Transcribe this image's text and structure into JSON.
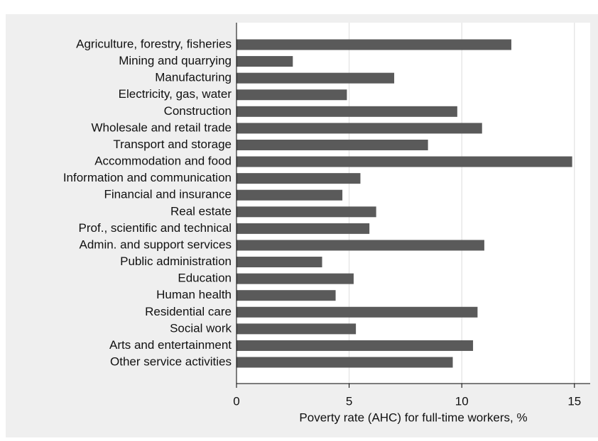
{
  "chart_data": {
    "type": "bar",
    "orientation": "horizontal",
    "categories": [
      "Agriculture, forestry, fisheries",
      "Mining and quarrying",
      "Manufacturing",
      "Electricity, gas, water",
      "Construction",
      "Wholesale and retail trade",
      "Transport and storage",
      "Accommodation and food",
      "Information and communication",
      "Financial and insurance",
      "Real estate",
      "Prof., scientific and technical",
      "Admin. and support services",
      "Public administration",
      "Education",
      "Human health",
      "Residential care",
      "Social work",
      "Arts and entertainment",
      "Other service activities"
    ],
    "values": [
      12.2,
      2.5,
      7.0,
      4.9,
      9.8,
      10.9,
      8.5,
      14.9,
      5.5,
      4.7,
      6.2,
      5.9,
      11.0,
      3.8,
      5.2,
      4.4,
      10.7,
      5.3,
      10.5,
      9.6
    ],
    "color": "#5a5a5a",
    "xlabel": "Poverty rate (AHC) for full-time workers, %",
    "xlim": [
      0,
      15.7
    ],
    "xticks": [
      0,
      5,
      10,
      15
    ],
    "grid": true
  }
}
